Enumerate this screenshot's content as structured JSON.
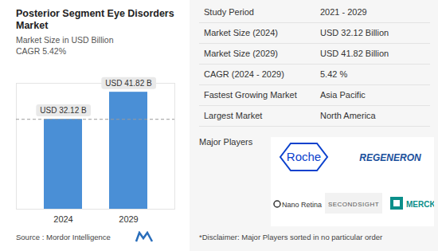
{
  "chart_data": {
    "type": "bar",
    "title": "Posterior Segment Eye Disorders Market",
    "subtitle": "Market Size in USD Billion",
    "annotations": [
      "CAGR 5.42%"
    ],
    "categories": [
      "2024",
      "2029"
    ],
    "values": [
      32.12,
      41.82
    ],
    "value_labels": [
      "USD 32.12 B",
      "USD 41.82 B"
    ],
    "data_labels": true,
    "color": "#4a8fd6",
    "ylim": [
      0,
      45
    ],
    "yticks": [],
    "tick_labels": "x"
  },
  "source": "Source : Mordor Intelligence",
  "table": {
    "rows": [
      [
        "Study Period",
        "2021 - 2029"
      ],
      [
        "Market Size (2024)",
        "USD 32.12 Billion"
      ],
      [
        "Market Size (2029)",
        "USD 41.82 Billion"
      ],
      [
        "CAGR (2024 - 2029)",
        "5.42 %"
      ],
      [
        "Fastest Growing Market",
        "Asia Pacific"
      ],
      [
        "Largest Market",
        "North America"
      ]
    ]
  },
  "major_players": {
    "title": "Major Players",
    "logos": [
      "Roche",
      "REGENERON",
      "Nano Retina",
      "SECONDSIGHT",
      "MERCK"
    ]
  },
  "disclaimer": "*Disclaimer: Major Players sorted in no particular order"
}
